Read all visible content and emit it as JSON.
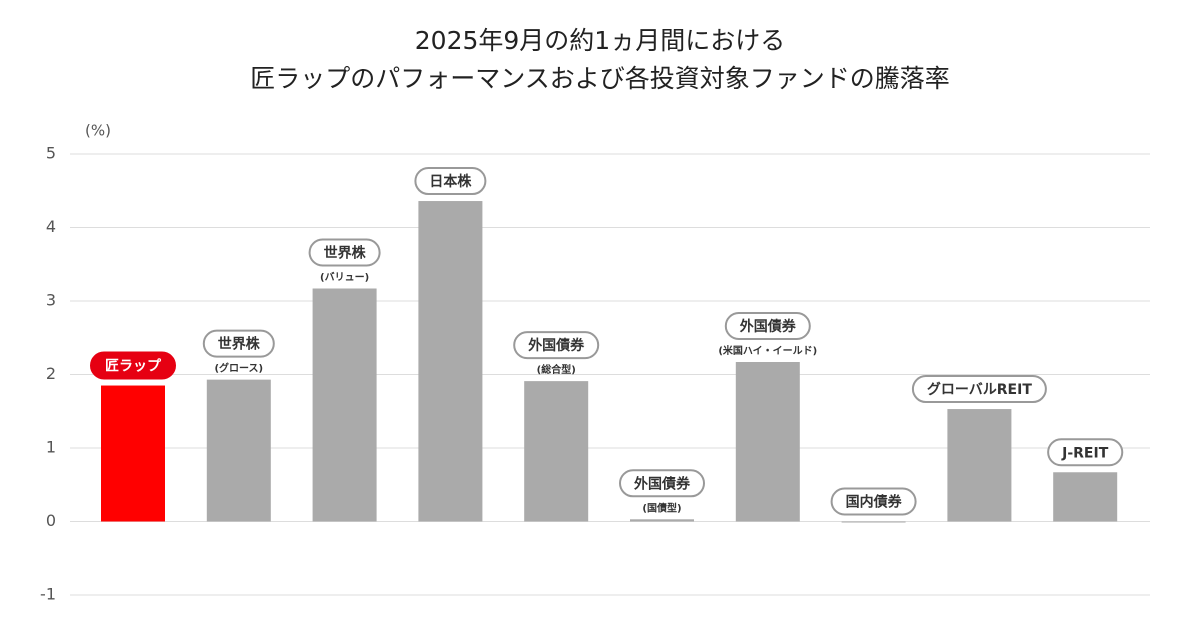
{
  "chart_data": {
    "type": "bar",
    "title": [
      "2025年9月の約1ヵ月間における",
      "匠ラップのパフォーマンスおよび各投資対象ファンドの騰落率"
    ],
    "unit_label": "(%)",
    "categories": [
      "匠ラップ",
      "世界株",
      "世界株",
      "日本株",
      "外国債券",
      "外国債券",
      "外国債券",
      "国内債券",
      "グローバルREIT",
      "J-REIT"
    ],
    "sublabels": [
      null,
      "(グロース)",
      "(バリュー)",
      null,
      "(総合型)",
      "(国債型)",
      "(米国ハイ・イールド)",
      null,
      null,
      null
    ],
    "values": [
      1.85,
      1.93,
      3.17,
      4.36,
      1.91,
      0.03,
      2.17,
      -0.01,
      1.53,
      0.67
    ],
    "colors": [
      "#ff0000",
      "#aaaaaa",
      "#aaaaaa",
      "#aaaaaa",
      "#aaaaaa",
      "#aaaaaa",
      "#aaaaaa",
      "#aaaaaa",
      "#aaaaaa",
      "#aaaaaa"
    ],
    "ylim": [
      -1,
      5
    ],
    "yticks": [
      -1,
      0,
      1,
      2,
      3,
      4,
      5
    ],
    "grid": true
  }
}
